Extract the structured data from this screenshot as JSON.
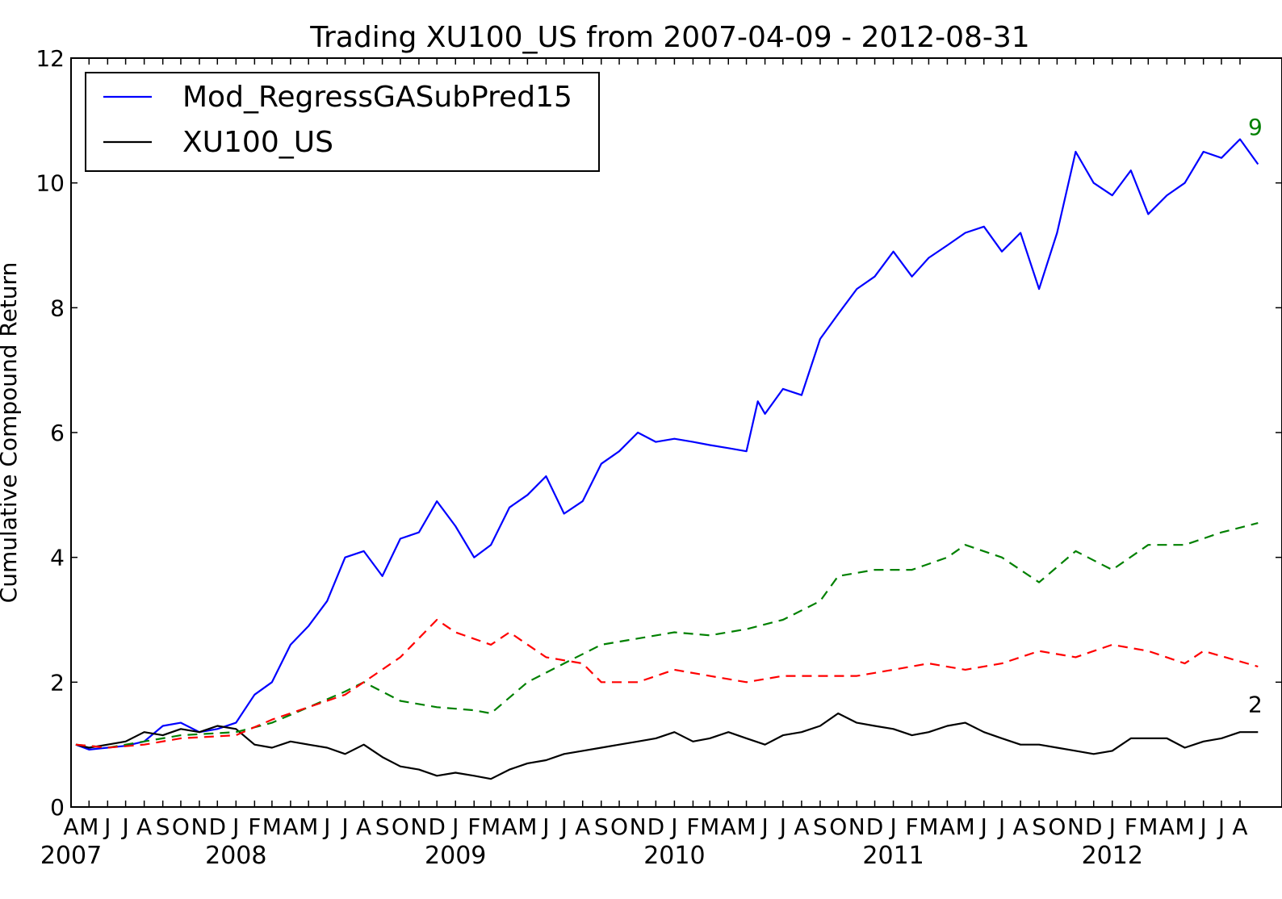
{
  "chart_data": {
    "type": "line",
    "title": "Trading XU100_US from 2007-04-09 - 2012-08-31",
    "ylabel": "Cumulative Compound Return",
    "xlabel": "",
    "xlim": [
      "2007-04-01",
      "2012-10-10"
    ],
    "ylim": [
      0,
      12
    ],
    "yticks": [
      0,
      2,
      4,
      6,
      8,
      10,
      12
    ],
    "legend_position": "upper-left",
    "end_labels": [
      {
        "text": "9",
        "color": "#008000"
      },
      {
        "text": "2",
        "color": "#000000"
      }
    ],
    "month_ticks": [
      {
        "date": "2007-04-01",
        "label": "A"
      },
      {
        "date": "2007-05-01",
        "label": "M"
      },
      {
        "date": "2007-06-01",
        "label": "J"
      },
      {
        "date": "2007-07-01",
        "label": "J"
      },
      {
        "date": "2007-08-01",
        "label": "A"
      },
      {
        "date": "2007-09-01",
        "label": "S"
      },
      {
        "date": "2007-10-01",
        "label": "O"
      },
      {
        "date": "2007-11-01",
        "label": "N"
      },
      {
        "date": "2007-12-01",
        "label": "D"
      },
      {
        "date": "2008-01-01",
        "label": "J"
      },
      {
        "date": "2008-02-01",
        "label": "F"
      },
      {
        "date": "2008-03-01",
        "label": "M"
      },
      {
        "date": "2008-04-01",
        "label": "A"
      },
      {
        "date": "2008-05-01",
        "label": "M"
      },
      {
        "date": "2008-06-01",
        "label": "J"
      },
      {
        "date": "2008-07-01",
        "label": "J"
      },
      {
        "date": "2008-08-01",
        "label": "A"
      },
      {
        "date": "2008-09-01",
        "label": "S"
      },
      {
        "date": "2008-10-01",
        "label": "O"
      },
      {
        "date": "2008-11-01",
        "label": "N"
      },
      {
        "date": "2008-12-01",
        "label": "D"
      },
      {
        "date": "2009-01-01",
        "label": "J"
      },
      {
        "date": "2009-02-01",
        "label": "F"
      },
      {
        "date": "2009-03-01",
        "label": "M"
      },
      {
        "date": "2009-04-01",
        "label": "A"
      },
      {
        "date": "2009-05-01",
        "label": "M"
      },
      {
        "date": "2009-06-01",
        "label": "J"
      },
      {
        "date": "2009-07-01",
        "label": "J"
      },
      {
        "date": "2009-08-01",
        "label": "A"
      },
      {
        "date": "2009-09-01",
        "label": "S"
      },
      {
        "date": "2009-10-01",
        "label": "O"
      },
      {
        "date": "2009-11-01",
        "label": "N"
      },
      {
        "date": "2009-12-01",
        "label": "D"
      },
      {
        "date": "2010-01-01",
        "label": "J"
      },
      {
        "date": "2010-02-01",
        "label": "F"
      },
      {
        "date": "2010-03-01",
        "label": "M"
      },
      {
        "date": "2010-04-01",
        "label": "A"
      },
      {
        "date": "2010-05-01",
        "label": "M"
      },
      {
        "date": "2010-06-01",
        "label": "J"
      },
      {
        "date": "2010-07-01",
        "label": "J"
      },
      {
        "date": "2010-08-01",
        "label": "A"
      },
      {
        "date": "2010-09-01",
        "label": "S"
      },
      {
        "date": "2010-10-01",
        "label": "O"
      },
      {
        "date": "2010-11-01",
        "label": "N"
      },
      {
        "date": "2010-12-01",
        "label": "D"
      },
      {
        "date": "2011-01-01",
        "label": "J"
      },
      {
        "date": "2011-02-01",
        "label": "F"
      },
      {
        "date": "2011-03-01",
        "label": "M"
      },
      {
        "date": "2011-04-01",
        "label": "A"
      },
      {
        "date": "2011-05-01",
        "label": "M"
      },
      {
        "date": "2011-06-01",
        "label": "J"
      },
      {
        "date": "2011-07-01",
        "label": "J"
      },
      {
        "date": "2011-08-01",
        "label": "A"
      },
      {
        "date": "2011-09-01",
        "label": "S"
      },
      {
        "date": "2011-10-01",
        "label": "O"
      },
      {
        "date": "2011-11-01",
        "label": "N"
      },
      {
        "date": "2011-12-01",
        "label": "D"
      },
      {
        "date": "2012-01-01",
        "label": "J"
      },
      {
        "date": "2012-02-01",
        "label": "F"
      },
      {
        "date": "2012-03-01",
        "label": "M"
      },
      {
        "date": "2012-04-01",
        "label": "A"
      },
      {
        "date": "2012-05-01",
        "label": "M"
      },
      {
        "date": "2012-06-01",
        "label": "J"
      },
      {
        "date": "2012-07-01",
        "label": "J"
      },
      {
        "date": "2012-08-01",
        "label": "A"
      }
    ],
    "year_ticks": [
      {
        "date": "2007-04-01",
        "label": "2007"
      },
      {
        "date": "2008-01-01",
        "label": "2008"
      },
      {
        "date": "2009-01-01",
        "label": "2009"
      },
      {
        "date": "2010-01-01",
        "label": "2010"
      },
      {
        "date": "2011-01-01",
        "label": "2011"
      },
      {
        "date": "2012-01-01",
        "label": "2012"
      }
    ],
    "series": [
      {
        "name": "Mod_RegressGASubPred15",
        "color": "#0000ff",
        "style": "solid",
        "in_legend": true,
        "points": [
          [
            "2007-04-09",
            1.0
          ],
          [
            "2007-05-01",
            0.92
          ],
          [
            "2007-06-01",
            0.95
          ],
          [
            "2007-07-01",
            0.98
          ],
          [
            "2007-08-01",
            1.05
          ],
          [
            "2007-09-01",
            1.3
          ],
          [
            "2007-10-01",
            1.35
          ],
          [
            "2007-11-01",
            1.2
          ],
          [
            "2007-12-01",
            1.25
          ],
          [
            "2008-01-01",
            1.35
          ],
          [
            "2008-02-01",
            1.8
          ],
          [
            "2008-03-01",
            2.0
          ],
          [
            "2008-04-01",
            2.6
          ],
          [
            "2008-05-01",
            2.9
          ],
          [
            "2008-06-01",
            3.3
          ],
          [
            "2008-07-01",
            4.0
          ],
          [
            "2008-08-01",
            4.1
          ],
          [
            "2008-09-01",
            3.7
          ],
          [
            "2008-10-01",
            4.3
          ],
          [
            "2008-11-01",
            4.4
          ],
          [
            "2008-12-01",
            4.9
          ],
          [
            "2009-01-01",
            4.5
          ],
          [
            "2009-02-01",
            4.0
          ],
          [
            "2009-03-01",
            4.2
          ],
          [
            "2009-04-01",
            4.8
          ],
          [
            "2009-05-01",
            5.0
          ],
          [
            "2009-06-01",
            5.3
          ],
          [
            "2009-07-01",
            4.7
          ],
          [
            "2009-08-01",
            4.9
          ],
          [
            "2009-09-01",
            5.5
          ],
          [
            "2009-10-01",
            5.7
          ],
          [
            "2009-11-01",
            6.0
          ],
          [
            "2009-12-01",
            5.85
          ],
          [
            "2010-01-01",
            5.9
          ],
          [
            "2010-02-01",
            5.85
          ],
          [
            "2010-03-01",
            5.8
          ],
          [
            "2010-04-01",
            5.75
          ],
          [
            "2010-05-01",
            5.7
          ],
          [
            "2010-05-20",
            6.5
          ],
          [
            "2010-06-01",
            6.3
          ],
          [
            "2010-07-01",
            6.7
          ],
          [
            "2010-08-01",
            6.6
          ],
          [
            "2010-09-01",
            7.5
          ],
          [
            "2010-10-01",
            7.9
          ],
          [
            "2010-11-01",
            8.3
          ],
          [
            "2010-12-01",
            8.5
          ],
          [
            "2011-01-01",
            8.9
          ],
          [
            "2011-02-01",
            8.5
          ],
          [
            "2011-03-01",
            8.8
          ],
          [
            "2011-04-01",
            9.0
          ],
          [
            "2011-05-01",
            9.2
          ],
          [
            "2011-06-01",
            9.3
          ],
          [
            "2011-07-01",
            8.9
          ],
          [
            "2011-08-01",
            9.2
          ],
          [
            "2011-09-01",
            8.3
          ],
          [
            "2011-10-01",
            9.2
          ],
          [
            "2011-11-01",
            10.5
          ],
          [
            "2011-12-01",
            10.0
          ],
          [
            "2012-01-01",
            9.8
          ],
          [
            "2012-02-01",
            10.2
          ],
          [
            "2012-03-01",
            9.5
          ],
          [
            "2012-04-01",
            9.8
          ],
          [
            "2012-05-01",
            10.0
          ],
          [
            "2012-06-01",
            10.5
          ],
          [
            "2012-07-01",
            10.4
          ],
          [
            "2012-08-01",
            10.7
          ],
          [
            "2012-08-31",
            10.3
          ]
        ]
      },
      {
        "name": "XU100_US",
        "color": "#000000",
        "style": "solid",
        "in_legend": true,
        "points": [
          [
            "2007-04-09",
            1.0
          ],
          [
            "2007-05-01",
            0.95
          ],
          [
            "2007-06-01",
            1.0
          ],
          [
            "2007-07-01",
            1.05
          ],
          [
            "2007-08-01",
            1.2
          ],
          [
            "2007-09-01",
            1.15
          ],
          [
            "2007-10-01",
            1.25
          ],
          [
            "2007-11-01",
            1.2
          ],
          [
            "2007-12-01",
            1.3
          ],
          [
            "2008-01-01",
            1.25
          ],
          [
            "2008-02-01",
            1.0
          ],
          [
            "2008-03-01",
            0.95
          ],
          [
            "2008-04-01",
            1.05
          ],
          [
            "2008-05-01",
            1.0
          ],
          [
            "2008-06-01",
            0.95
          ],
          [
            "2008-07-01",
            0.85
          ],
          [
            "2008-08-01",
            1.0
          ],
          [
            "2008-09-01",
            0.8
          ],
          [
            "2008-10-01",
            0.65
          ],
          [
            "2008-11-01",
            0.6
          ],
          [
            "2008-12-01",
            0.5
          ],
          [
            "2009-01-01",
            0.55
          ],
          [
            "2009-02-01",
            0.5
          ],
          [
            "2009-03-01",
            0.45
          ],
          [
            "2009-04-01",
            0.6
          ],
          [
            "2009-05-01",
            0.7
          ],
          [
            "2009-06-01",
            0.75
          ],
          [
            "2009-07-01",
            0.85
          ],
          [
            "2009-08-01",
            0.9
          ],
          [
            "2009-09-01",
            0.95
          ],
          [
            "2009-10-01",
            1.0
          ],
          [
            "2009-11-01",
            1.05
          ],
          [
            "2009-12-01",
            1.1
          ],
          [
            "2010-01-01",
            1.2
          ],
          [
            "2010-02-01",
            1.05
          ],
          [
            "2010-03-01",
            1.1
          ],
          [
            "2010-04-01",
            1.2
          ],
          [
            "2010-05-01",
            1.1
          ],
          [
            "2010-06-01",
            1.0
          ],
          [
            "2010-07-01",
            1.15
          ],
          [
            "2010-08-01",
            1.2
          ],
          [
            "2010-09-01",
            1.3
          ],
          [
            "2010-10-01",
            1.5
          ],
          [
            "2010-11-01",
            1.35
          ],
          [
            "2010-12-01",
            1.3
          ],
          [
            "2011-01-01",
            1.25
          ],
          [
            "2011-02-01",
            1.15
          ],
          [
            "2011-03-01",
            1.2
          ],
          [
            "2011-04-01",
            1.3
          ],
          [
            "2011-05-01",
            1.35
          ],
          [
            "2011-06-01",
            1.2
          ],
          [
            "2011-07-01",
            1.1
          ],
          [
            "2011-08-01",
            1.0
          ],
          [
            "2011-09-01",
            1.0
          ],
          [
            "2011-10-01",
            0.95
          ],
          [
            "2011-11-01",
            0.9
          ],
          [
            "2011-12-01",
            0.85
          ],
          [
            "2012-01-01",
            0.9
          ],
          [
            "2012-02-01",
            1.1
          ],
          [
            "2012-03-01",
            1.1
          ],
          [
            "2012-04-01",
            1.1
          ],
          [
            "2012-05-01",
            0.95
          ],
          [
            "2012-06-01",
            1.05
          ],
          [
            "2012-07-01",
            1.1
          ],
          [
            "2012-08-01",
            1.2
          ],
          [
            "2012-08-31",
            1.2
          ]
        ]
      },
      {
        "name": "",
        "color": "#008000",
        "style": "dashed",
        "in_legend": false,
        "points": [
          [
            "2007-04-09",
            1.0
          ],
          [
            "2007-06-01",
            0.95
          ],
          [
            "2007-08-01",
            1.05
          ],
          [
            "2007-10-01",
            1.15
          ],
          [
            "2008-01-01",
            1.2
          ],
          [
            "2008-03-01",
            1.35
          ],
          [
            "2008-05-01",
            1.6
          ],
          [
            "2008-07-01",
            1.85
          ],
          [
            "2008-08-01",
            2.0
          ],
          [
            "2008-10-01",
            1.7
          ],
          [
            "2008-12-01",
            1.6
          ],
          [
            "2009-02-01",
            1.55
          ],
          [
            "2009-03-01",
            1.5
          ],
          [
            "2009-05-01",
            2.0
          ],
          [
            "2009-07-01",
            2.3
          ],
          [
            "2009-09-01",
            2.6
          ],
          [
            "2009-11-01",
            2.7
          ],
          [
            "2010-01-01",
            2.8
          ],
          [
            "2010-03-01",
            2.75
          ],
          [
            "2010-05-01",
            2.85
          ],
          [
            "2010-07-01",
            3.0
          ],
          [
            "2010-09-01",
            3.3
          ],
          [
            "2010-10-01",
            3.7
          ],
          [
            "2010-12-01",
            3.8
          ],
          [
            "2011-02-01",
            3.8
          ],
          [
            "2011-04-01",
            4.0
          ],
          [
            "2011-05-01",
            4.2
          ],
          [
            "2011-07-01",
            4.0
          ],
          [
            "2011-09-01",
            3.6
          ],
          [
            "2011-11-01",
            4.1
          ],
          [
            "2012-01-01",
            3.8
          ],
          [
            "2012-03-01",
            4.2
          ],
          [
            "2012-05-01",
            4.2
          ],
          [
            "2012-07-01",
            4.4
          ],
          [
            "2012-08-31",
            4.55
          ]
        ]
      },
      {
        "name": "",
        "color": "#ff0000",
        "style": "dashed",
        "in_legend": false,
        "points": [
          [
            "2007-04-09",
            1.0
          ],
          [
            "2007-06-01",
            0.95
          ],
          [
            "2007-08-01",
            1.0
          ],
          [
            "2007-10-01",
            1.1
          ],
          [
            "2008-01-01",
            1.15
          ],
          [
            "2008-03-01",
            1.4
          ],
          [
            "2008-05-01",
            1.6
          ],
          [
            "2008-07-01",
            1.8
          ],
          [
            "2008-08-01",
            2.0
          ],
          [
            "2008-10-01",
            2.4
          ],
          [
            "2008-12-01",
            3.0
          ],
          [
            "2009-01-01",
            2.8
          ],
          [
            "2009-03-01",
            2.6
          ],
          [
            "2009-04-01",
            2.8
          ],
          [
            "2009-06-01",
            2.4
          ],
          [
            "2009-08-01",
            2.3
          ],
          [
            "2009-09-01",
            2.0
          ],
          [
            "2009-11-01",
            2.0
          ],
          [
            "2010-01-01",
            2.2
          ],
          [
            "2010-03-01",
            2.1
          ],
          [
            "2010-05-01",
            2.0
          ],
          [
            "2010-07-01",
            2.1
          ],
          [
            "2010-09-01",
            2.1
          ],
          [
            "2010-11-01",
            2.1
          ],
          [
            "2011-01-01",
            2.2
          ],
          [
            "2011-03-01",
            2.3
          ],
          [
            "2011-05-01",
            2.2
          ],
          [
            "2011-07-01",
            2.3
          ],
          [
            "2011-09-01",
            2.5
          ],
          [
            "2011-11-01",
            2.4
          ],
          [
            "2012-01-01",
            2.6
          ],
          [
            "2012-03-01",
            2.5
          ],
          [
            "2012-05-01",
            2.3
          ],
          [
            "2012-06-01",
            2.5
          ],
          [
            "2012-08-31",
            2.25
          ]
        ]
      }
    ]
  }
}
